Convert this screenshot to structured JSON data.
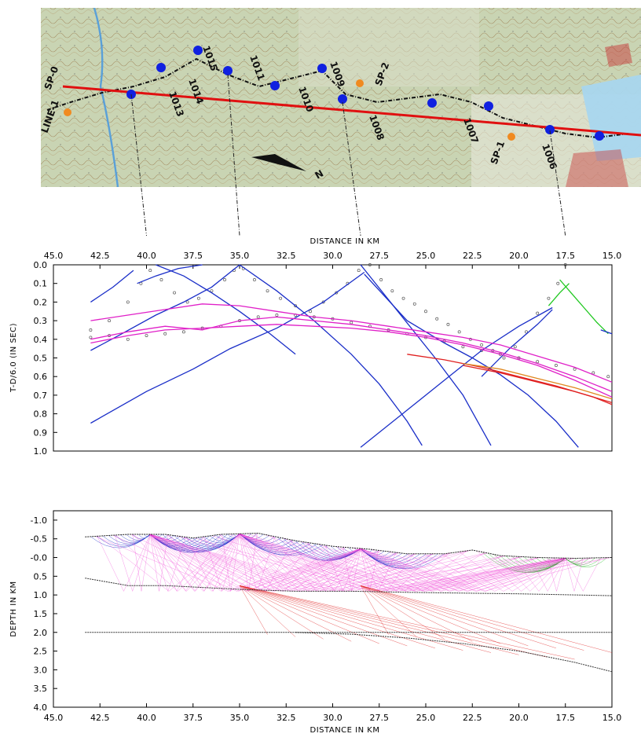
{
  "map": {
    "line_label": "LINE-1",
    "shot_labels": [
      "SP-0",
      "SP-1",
      "SP-2"
    ],
    "station_labels": [
      "1013",
      "1014",
      "1015",
      "1011",
      "1010",
      "1009",
      "1008",
      "1007",
      "1006"
    ],
    "shot_colors": {
      "blue": "#1020e0",
      "orange": "#f08a20",
      "profile": "#e01010"
    },
    "compass_label": "N"
  },
  "chart_data": [
    {
      "type": "line",
      "panel": "travel-time",
      "xlabel": "DISTANCE IN KM",
      "ylabel": "T-D/6.0 (IN SEC)",
      "xlim": [
        45.0,
        15.0
      ],
      "ylim": [
        1.0,
        0.0
      ],
      "xticks": [
        "45.0",
        "42.5",
        "40.0",
        "37.5",
        "35.0",
        "32.5",
        "30.0",
        "27.5",
        "25.0",
        "22.5",
        "20.0",
        "17.5",
        "15.0"
      ],
      "yticks": [
        "0.0",
        "0.1",
        "0.2",
        "0.3",
        "0.4",
        "0.5",
        "0.6",
        "0.7",
        "0.8",
        "0.9",
        "1.0"
      ],
      "grid": false,
      "shot_points_km": [
        40.0,
        35.0,
        28.5,
        17.5
      ],
      "series": [
        {
          "color": "#1a2ec8",
          "x": [
            43.0,
            41.8,
            40.7
          ],
          "y": [
            0.2,
            0.12,
            0.03
          ]
        },
        {
          "color": "#1a2ec8",
          "x": [
            39.5,
            38.0,
            36.5,
            35.0,
            33.5,
            32.0
          ],
          "y": [
            0.0,
            0.06,
            0.15,
            0.25,
            0.36,
            0.48
          ]
        },
        {
          "color": "#1a2ec8",
          "x": [
            35.0,
            36.5,
            38.0,
            39.5,
            41.5,
            43.0
          ],
          "y": [
            0.0,
            0.12,
            0.2,
            0.27,
            0.38,
            0.46
          ]
        },
        {
          "color": "#1a2ec8",
          "x": [
            35.0,
            33.0,
            31.0,
            29.0,
            27.5,
            26.0,
            25.2
          ],
          "y": [
            0.0,
            0.14,
            0.3,
            0.48,
            0.64,
            0.84,
            0.97
          ]
        },
        {
          "color": "#1a2ec8",
          "x": [
            28.3,
            30.5,
            33.0,
            35.5,
            37.5,
            40.0,
            43.0
          ],
          "y": [
            0.04,
            0.2,
            0.34,
            0.45,
            0.56,
            0.68,
            0.85
          ]
        },
        {
          "color": "#1a2ec8",
          "x": [
            28.5,
            26.5,
            24.5,
            23.0,
            21.5
          ],
          "y": [
            0.0,
            0.25,
            0.5,
            0.7,
            0.97
          ]
        },
        {
          "color": "#1a2ec8",
          "x": [
            22.0,
            20.5,
            19.0,
            18.2
          ],
          "y": [
            0.6,
            0.45,
            0.32,
            0.24
          ]
        },
        {
          "color": "#1a2ec8",
          "x": [
            28.5,
            26.0,
            24.0,
            22.0,
            20.0,
            18.2
          ],
          "y": [
            0.98,
            0.78,
            0.62,
            0.46,
            0.33,
            0.23
          ]
        },
        {
          "color": "#1a2ec8",
          "x": [
            28.3,
            26.0,
            24.0,
            22.5,
            21.0,
            19.5,
            18.0,
            16.8
          ],
          "y": [
            0.05,
            0.3,
            0.42,
            0.5,
            0.59,
            0.7,
            0.84,
            0.98
          ]
        },
        {
          "color": "#1a2ec8",
          "x": [
            40.5,
            39.5,
            38.3,
            37.0
          ],
          "y": [
            0.1,
            0.06,
            0.02,
            0.0
          ]
        },
        {
          "color": "#e020c8",
          "x": [
            43.0,
            41.0,
            39.0,
            37.0,
            35.0,
            33.0,
            31.0,
            29.0,
            27.0,
            25.0,
            23.0,
            21.0,
            19.0,
            17.0,
            15.0
          ],
          "y": [
            0.3,
            0.27,
            0.24,
            0.21,
            0.22,
            0.25,
            0.28,
            0.3,
            0.33,
            0.36,
            0.39,
            0.43,
            0.49,
            0.55,
            0.63
          ]
        },
        {
          "color": "#e020c8",
          "x": [
            43.0,
            41.0,
            39.0,
            37.0,
            35.0,
            33.0,
            31.0,
            29.0,
            27.0,
            25.0,
            23.0,
            21.0,
            19.0,
            17.0,
            15.0
          ],
          "y": [
            0.42,
            0.38,
            0.35,
            0.34,
            0.33,
            0.32,
            0.33,
            0.34,
            0.36,
            0.39,
            0.43,
            0.48,
            0.54,
            0.62,
            0.71
          ]
        },
        {
          "color": "#e020c8",
          "x": [
            43.0,
            41.0,
            39.0,
            37.0,
            35.0,
            33.0,
            31.0,
            29.0,
            27.0,
            25.0,
            23.0,
            21.0,
            19.0,
            17.0,
            15.0
          ],
          "y": [
            0.4,
            0.36,
            0.33,
            0.35,
            0.3,
            0.28,
            0.3,
            0.32,
            0.35,
            0.38,
            0.42,
            0.47,
            0.53,
            0.6,
            0.68
          ]
        },
        {
          "color": "#e02020",
          "x": [
            26.0,
            24.0,
            22.0,
            20.0,
            18.0,
            16.0,
            15.0
          ],
          "y": [
            0.48,
            0.51,
            0.55,
            0.6,
            0.65,
            0.71,
            0.75
          ]
        },
        {
          "color": "#e02020",
          "x": [
            23.0,
            21.0,
            19.0,
            17.0,
            15.0
          ],
          "y": [
            0.54,
            0.58,
            0.63,
            0.68,
            0.74
          ]
        },
        {
          "color": "#e08820",
          "x": [
            23.0,
            21.0,
            19.0,
            17.0,
            15.0
          ],
          "y": [
            0.53,
            0.56,
            0.61,
            0.66,
            0.72
          ]
        },
        {
          "color": "#20c820",
          "x": [
            17.8,
            17.2,
            16.5,
            15.8,
            15.2
          ],
          "y": [
            0.08,
            0.15,
            0.23,
            0.31,
            0.37
          ]
        },
        {
          "color": "#20c820",
          "x": [
            17.3,
            17.8,
            18.4
          ],
          "y": [
            0.1,
            0.15,
            0.22
          ]
        },
        {
          "color": "#1a2ec8",
          "x": [
            15.6,
            15.0
          ],
          "y": [
            0.35,
            0.37
          ]
        }
      ],
      "observed_picks": [
        {
          "x": [
            43.0,
            42.0,
            41.0,
            40.3,
            39.8,
            39.2,
            38.5,
            37.8,
            37.2,
            36.5,
            35.8,
            35.3,
            34.8,
            34.2,
            33.5,
            32.8,
            32.0,
            31.2,
            30.5,
            29.8,
            29.2,
            28.6,
            28.0,
            27.4,
            26.8,
            26.2,
            25.6,
            25.0,
            24.4,
            23.8,
            23.2,
            22.6,
            22.0,
            21.4,
            20.8,
            20.2,
            19.6,
            19.0,
            18.4,
            17.9,
            17.5
          ],
          "y": [
            0.35,
            0.3,
            0.2,
            0.1,
            0.03,
            0.08,
            0.15,
            0.2,
            0.18,
            0.14,
            0.08,
            0.03,
            0.02,
            0.08,
            0.14,
            0.18,
            0.22,
            0.25,
            0.2,
            0.15,
            0.1,
            0.03,
            0.0,
            0.08,
            0.14,
            0.18,
            0.21,
            0.25,
            0.29,
            0.32,
            0.36,
            0.4,
            0.43,
            0.46,
            0.5,
            0.44,
            0.36,
            0.26,
            0.18,
            0.1,
            0.0
          ]
        },
        {
          "x": [
            43.0,
            42.0,
            41.0,
            40.0,
            39.0,
            38.0,
            37.0,
            36.0,
            35.0,
            34.0,
            33.0,
            32.0,
            31.0,
            30.0,
            29.0,
            28.0,
            27.0,
            26.0,
            25.0,
            24.0,
            23.0,
            22.0,
            21.0,
            20.0,
            19.0,
            18.0,
            17.0,
            16.0,
            15.2
          ],
          "y": [
            0.39,
            0.38,
            0.4,
            0.38,
            0.37,
            0.36,
            0.34,
            0.33,
            0.3,
            0.28,
            0.27,
            0.27,
            0.28,
            0.29,
            0.31,
            0.33,
            0.35,
            0.37,
            0.39,
            0.41,
            0.44,
            0.46,
            0.48,
            0.5,
            0.52,
            0.54,
            0.56,
            0.58,
            0.6
          ]
        }
      ]
    },
    {
      "type": "line",
      "panel": "ray-diagram",
      "xlabel": "DISTANCE IN KM",
      "ylabel": "DEPTH IN KM",
      "xlim": [
        45.0,
        15.0
      ],
      "ylim": [
        -1.25,
        4.0
      ],
      "xticks": [
        "45.0",
        "42.5",
        "40.0",
        "37.5",
        "35.0",
        "32.5",
        "30.0",
        "27.5",
        "25.0",
        "22.5",
        "20.0",
        "17.5",
        "15.0"
      ],
      "yticks": [
        "-1.0",
        "-0.5",
        "-0.0",
        "0.5",
        "1.0",
        "1.5",
        "2.0",
        "2.5",
        "3.0",
        "3.5",
        "4.0"
      ],
      "grid": false,
      "shot_points_km": [
        39.8,
        35.0,
        28.5,
        17.5
      ],
      "surface": {
        "x": [
          43.3,
          41.0,
          39.0,
          37.5,
          36.0,
          34.0,
          32.0,
          30.0,
          28.0,
          26.0,
          24.0,
          22.5,
          21.0,
          19.0,
          17.0,
          15.0
        ],
        "y": [
          -0.55,
          -0.62,
          -0.62,
          -0.52,
          -0.62,
          -0.65,
          -0.45,
          -0.3,
          -0.22,
          -0.1,
          -0.1,
          -0.2,
          -0.05,
          0.0,
          0.02,
          0.0
        ]
      },
      "interfaces": [
        {
          "x": [
            43.3,
            41.0,
            39.0,
            37.0,
            35.0,
            32.0,
            29.0,
            26.0,
            23.0,
            20.0,
            17.0,
            15.0
          ],
          "y": [
            0.55,
            0.75,
            0.75,
            0.8,
            0.85,
            0.9,
            0.9,
            0.93,
            0.95,
            0.97,
            1.0,
            1.02
          ]
        },
        {
          "x": [
            43.3,
            40.0,
            37.0,
            34.0,
            31.0,
            28.0,
            25.0,
            22.0,
            19.0,
            17.0,
            15.0
          ],
          "y": [
            2.0,
            2.0,
            2.0,
            2.0,
            2.0,
            2.0,
            2.0,
            2.0,
            2.0,
            2.0,
            2.0
          ]
        },
        {
          "x": [
            32.0,
            29.0,
            26.0,
            23.0,
            20.0,
            17.0,
            15.0
          ],
          "y": [
            2.0,
            2.05,
            2.15,
            2.3,
            2.5,
            2.8,
            3.05
          ]
        }
      ]
    }
  ]
}
